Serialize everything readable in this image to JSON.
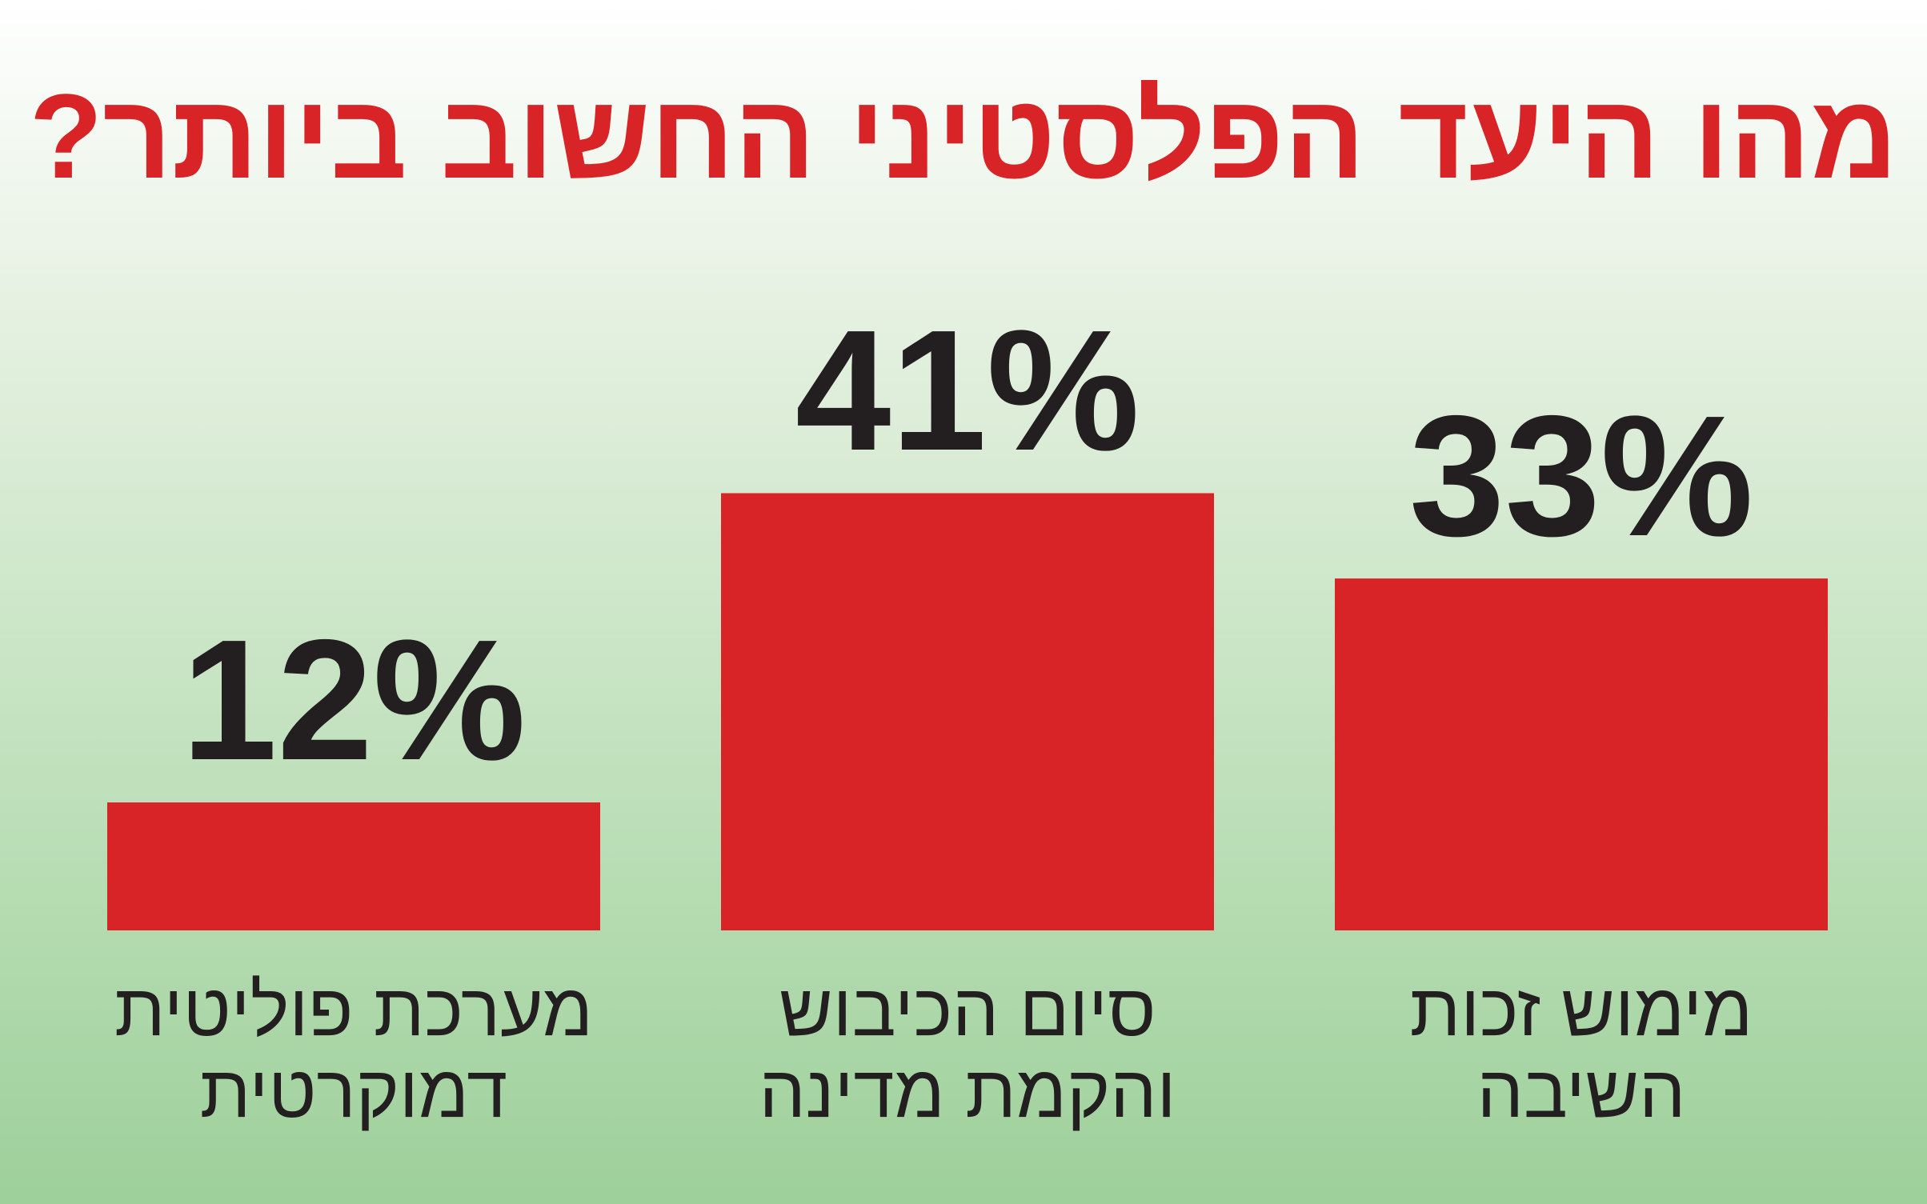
{
  "chart_data": {
    "type": "bar",
    "title": "מהו היעד הפלסטיני החשוב ביותר?",
    "categories": [
      "מערכת פוליטית דמוקרטית",
      "סיום הכיבוש והקמת מדינה",
      "מימוש זכות השיבה"
    ],
    "values": [
      12,
      41,
      33
    ],
    "value_labels": [
      "12%",
      "41%",
      "33%"
    ],
    "color": "#d92427"
  }
}
